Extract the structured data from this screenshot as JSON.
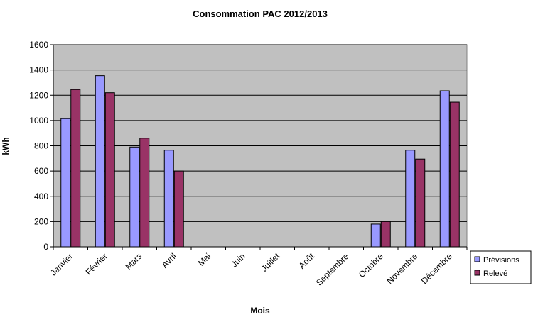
{
  "chart_data": {
    "type": "bar",
    "title": "Consommation PAC 2012/2013",
    "xlabel": "Mois",
    "ylabel": "kWh",
    "ylim": [
      0,
      1600
    ],
    "yticks": [
      0,
      200,
      400,
      600,
      800,
      1000,
      1200,
      1400,
      1600
    ],
    "categories": [
      "Janvier",
      "Février",
      "Mars",
      "Avril",
      "Mai",
      "Juin",
      "Juillet",
      "Août",
      "Septembre",
      "Octobre",
      "Novembre",
      "Décembre"
    ],
    "series": [
      {
        "name": "Prévisions",
        "color": "#9999ff",
        "values": [
          1015,
          1355,
          790,
          765,
          0,
          0,
          0,
          0,
          0,
          180,
          765,
          1235
        ]
      },
      {
        "name": "Relevé",
        "color": "#993366",
        "values": [
          1245,
          1220,
          860,
          600,
          0,
          0,
          0,
          0,
          0,
          200,
          695,
          1145
        ]
      }
    ],
    "grid": true,
    "plot_background": "#c0c0c0",
    "legend_position": "right"
  }
}
